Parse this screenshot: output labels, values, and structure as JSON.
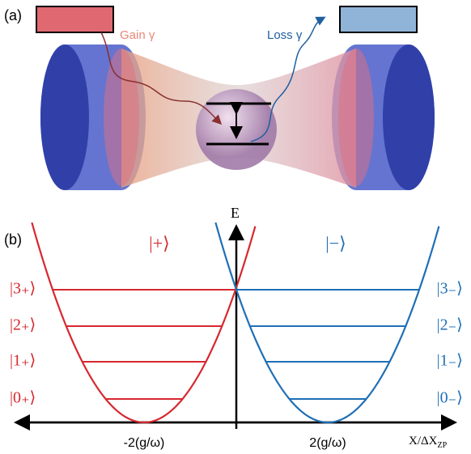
{
  "panel_a": {
    "label": "(a)",
    "gain": "Gain γ",
    "loss": "Loss γ"
  },
  "panel_b": {
    "label": "(b)",
    "energy_axis": "E",
    "x_axis": {
      "main": "X/ΔX",
      "sub": "ZP"
    },
    "plus_state": "|+⟩",
    "minus_state": "|−⟩",
    "plus_levels": [
      "|3₊⟩",
      "|2₊⟩",
      "|1₊⟩",
      "|0₊⟩"
    ],
    "minus_levels": [
      "|3₋⟩",
      "|2₋⟩",
      "|1₋⟩",
      "|0₋⟩"
    ],
    "left_center": "-2(g/ω)",
    "right_center": "2(g/ω)"
  }
}
